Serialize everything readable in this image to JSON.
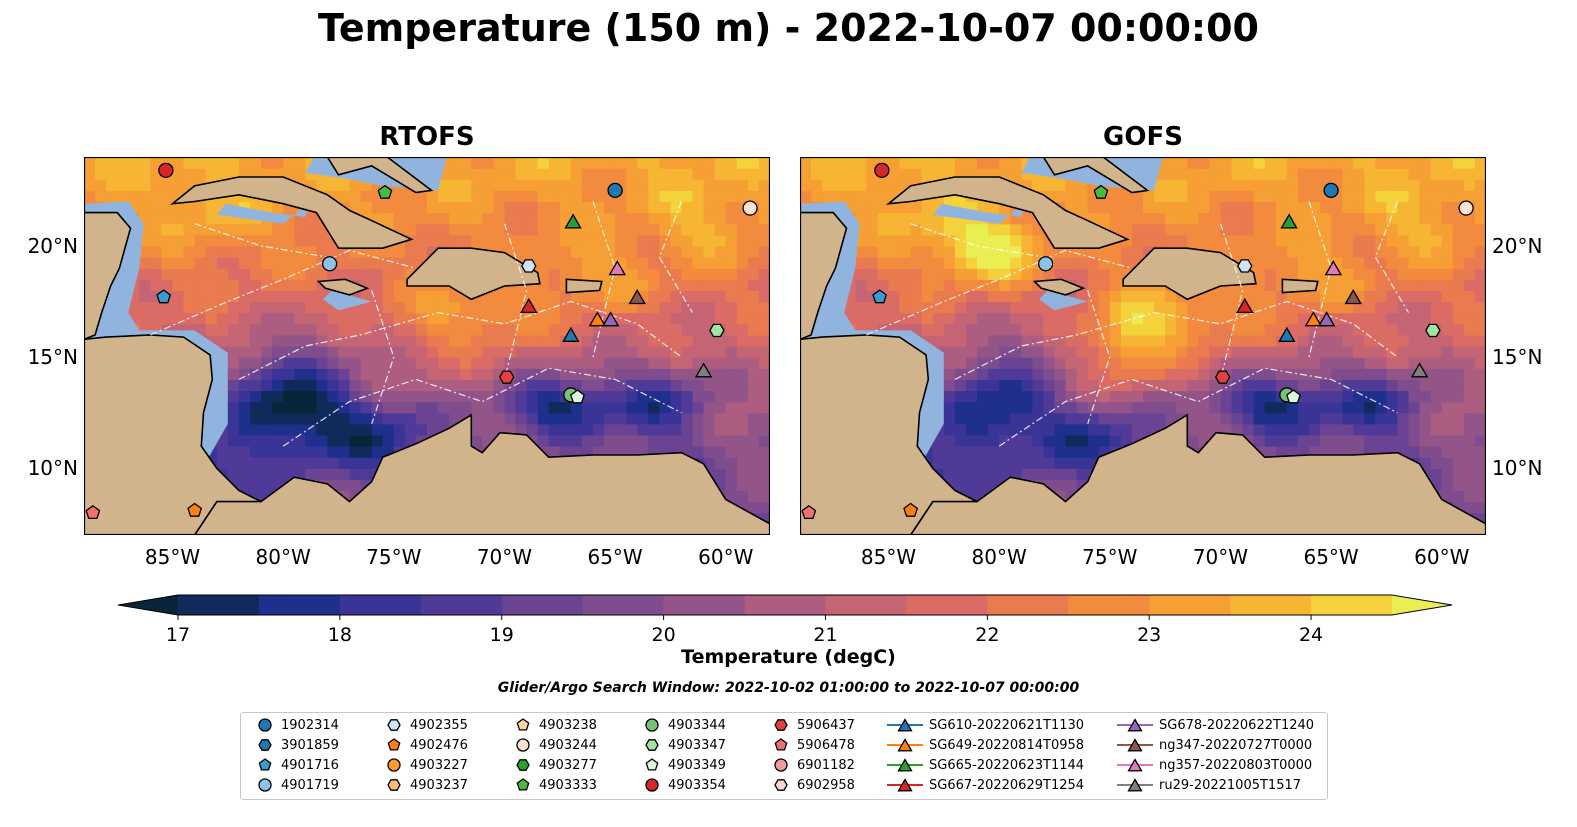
{
  "title": "Temperature (150 m) - 2022-10-07 00:00:00",
  "panels": [
    {
      "id": "rtofs",
      "title": "RTOFS"
    },
    {
      "id": "gofs",
      "title": "GOFS"
    }
  ],
  "map": {
    "lon_range": [
      -89,
      -58
    ],
    "lat_range": [
      7,
      24
    ],
    "x_ticks": [
      {
        "lon": -85,
        "label": "85°W"
      },
      {
        "lon": -80,
        "label": "80°W"
      },
      {
        "lon": -75,
        "label": "75°W"
      },
      {
        "lon": -70,
        "label": "70°W"
      },
      {
        "lon": -65,
        "label": "65°W"
      },
      {
        "lon": -60,
        "label": "60°W"
      }
    ],
    "y_ticks": [
      {
        "lat": 20,
        "label": "20°N"
      },
      {
        "lat": 15,
        "label": "15°N"
      },
      {
        "lat": 10,
        "label": "10°N"
      }
    ],
    "land_color": "#d2b48c",
    "shelf_color": "#90b4de"
  },
  "colorbar": {
    "label": "Temperature (degC)",
    "min": 17,
    "max": 24.5,
    "step": 0.5,
    "ticks": [
      {
        "value": 17,
        "label": "17"
      },
      {
        "value": 18,
        "label": "18"
      },
      {
        "value": 19,
        "label": "19"
      },
      {
        "value": 20,
        "label": "20"
      },
      {
        "value": 21,
        "label": "21"
      },
      {
        "value": 22,
        "label": "22"
      },
      {
        "value": 23,
        "label": "23"
      },
      {
        "value": 24,
        "label": "24"
      }
    ],
    "colors": [
      "#08263a",
      "#112a5c",
      "#1f2f8c",
      "#3b3497",
      "#503a98",
      "#6b4393",
      "#7f4c8e",
      "#935488",
      "#ad5d80",
      "#c56574",
      "#da6c65",
      "#ea7b4f",
      "#f38b3f",
      "#f59f34",
      "#f6b633",
      "#f4d23b",
      "#e9ef53"
    ]
  },
  "search_window": "Glider/Argo Search Window: 2022-10-02 01:00:00 to 2022-10-07 00:00:00",
  "legend": [
    {
      "label": "1902314",
      "marker": "circle",
      "color": "#1f77b4",
      "lon": -65.0,
      "lat": 22.5
    },
    {
      "label": "3901859",
      "marker": "hexagon",
      "color": "#1f77b4",
      "lon": null,
      "lat": null
    },
    {
      "label": "4901716",
      "marker": "pentagon",
      "color": "#3a9bd1",
      "lon": -85.4,
      "lat": 17.7
    },
    {
      "label": "4901719",
      "marker": "circle",
      "color": "#8cc3ea",
      "lon": -77.9,
      "lat": 19.2
    },
    {
      "label": "4902355",
      "marker": "hexagon",
      "color": "#cfe4f6",
      "lon": -68.9,
      "lat": 19.1
    },
    {
      "label": "4902476",
      "marker": "pentagon",
      "color": "#ff7f0e",
      "lon": -84.0,
      "lat": 8.1
    },
    {
      "label": "4903227",
      "marker": "circle",
      "color": "#ff9a33",
      "lon": null,
      "lat": null
    },
    {
      "label": "4903237",
      "marker": "hexagon",
      "color": "#ffbb78",
      "lon": null,
      "lat": null
    },
    {
      "label": "4903238",
      "marker": "pentagon",
      "color": "#ffd5a8",
      "lon": null,
      "lat": null
    },
    {
      "label": "4903244",
      "marker": "circle",
      "color": "#fde3cf",
      "lon": -58.9,
      "lat": 21.7
    },
    {
      "label": "4903277",
      "marker": "hexagon",
      "color": "#2ca02c",
      "lon": null,
      "lat": null
    },
    {
      "label": "4903333",
      "marker": "pentagon",
      "color": "#4aba3a",
      "lon": -75.4,
      "lat": 22.4
    },
    {
      "label": "4903344",
      "marker": "circle",
      "color": "#74c476",
      "lon": -67.0,
      "lat": 13.3
    },
    {
      "label": "4903347",
      "marker": "hexagon",
      "color": "#a1e3a1",
      "lon": -60.4,
      "lat": 16.2
    },
    {
      "label": "4903349",
      "marker": "pentagon",
      "color": "#dff5dc",
      "lon": -66.7,
      "lat": 13.2
    },
    {
      "label": "4903354",
      "marker": "circle",
      "color": "#d62728",
      "lon": -85.3,
      "lat": 23.4
    },
    {
      "label": "5906437",
      "marker": "hexagon",
      "color": "#e34040",
      "lon": -69.9,
      "lat": 14.1
    },
    {
      "label": "5906478",
      "marker": "pentagon",
      "color": "#f07070",
      "lon": -88.6,
      "lat": 8.0
    },
    {
      "label": "6901182",
      "marker": "circle",
      "color": "#f59a9a",
      "lon": null,
      "lat": null
    },
    {
      "label": "6902958",
      "marker": "hexagon",
      "color": "#fbd4d4",
      "lon": null,
      "lat": null
    },
    {
      "label": "SG610-20220621T1130",
      "marker": "triangle",
      "color": "#1f77b4",
      "lon": -67.0,
      "lat": 16.0
    },
    {
      "label": "SG649-20220814T0958",
      "marker": "triangle",
      "color": "#ff7f0e",
      "lon": -65.8,
      "lat": 16.7
    },
    {
      "label": "SG665-20220623T1144",
      "marker": "triangle",
      "color": "#2ca02c",
      "lon": -66.9,
      "lat": 21.1
    },
    {
      "label": "SG667-20220629T1254",
      "marker": "triangle",
      "color": "#d62728",
      "lon": -68.9,
      "lat": 17.3
    },
    {
      "label": "SG678-20220622T1240",
      "marker": "triangle",
      "color": "#9467bd",
      "lon": -65.2,
      "lat": 16.7
    },
    {
      "label": "ng347-20220727T0000",
      "marker": "triangle",
      "color": "#8c564b",
      "lon": -64.0,
      "lat": 17.7
    },
    {
      "label": "ng357-20220803T0000",
      "marker": "triangle",
      "color": "#e377c2",
      "lon": -64.9,
      "lat": 19.0
    },
    {
      "label": "ru29-20221005T1517",
      "marker": "triangle",
      "color": "#7f7f7f",
      "lon": -61.0,
      "lat": 14.4
    }
  ]
}
